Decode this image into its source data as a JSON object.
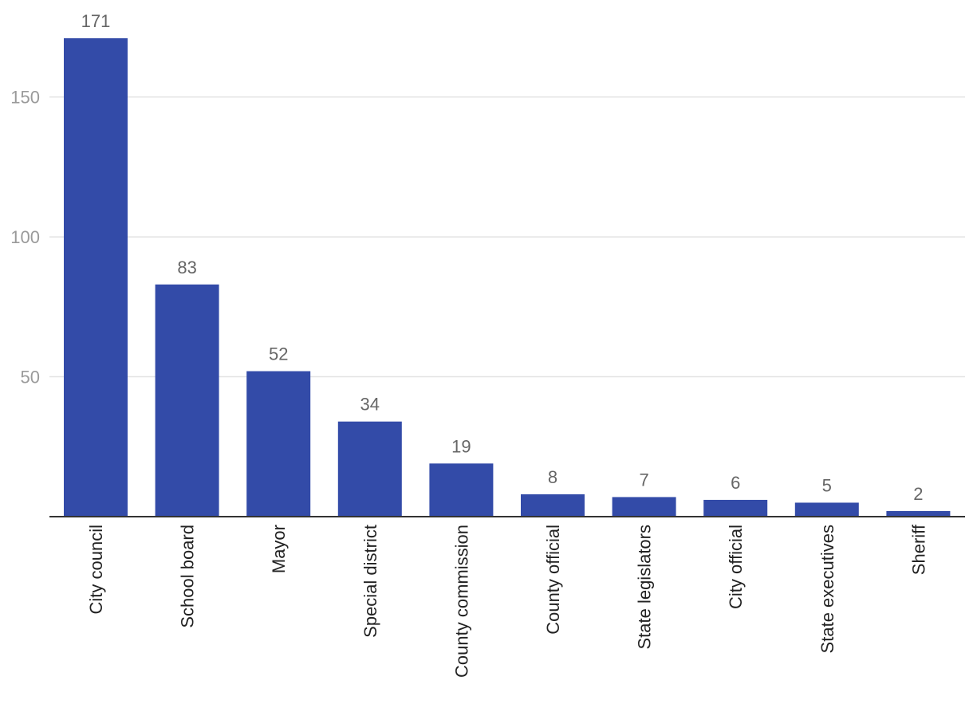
{
  "chart_data": {
    "type": "bar",
    "title": "",
    "xlabel": "",
    "ylabel": "",
    "categories": [
      "City council",
      "School board",
      "Mayor",
      "Special district",
      "County commission",
      "County official",
      "State legislators",
      "City official",
      "State executives",
      "Sheriff"
    ],
    "values": [
      171,
      83,
      52,
      34,
      19,
      8,
      7,
      6,
      5,
      2
    ],
    "data_labels": [
      "171",
      "83",
      "52",
      "34",
      "19",
      "8",
      "7",
      "6",
      "5",
      "2"
    ],
    "ylim": [
      0,
      171
    ],
    "yticks": [
      50,
      100,
      150
    ],
    "ytick_labels": [
      "50",
      "100",
      "150"
    ],
    "grid": true,
    "legend": "none",
    "bar_color": "#334ba8"
  }
}
